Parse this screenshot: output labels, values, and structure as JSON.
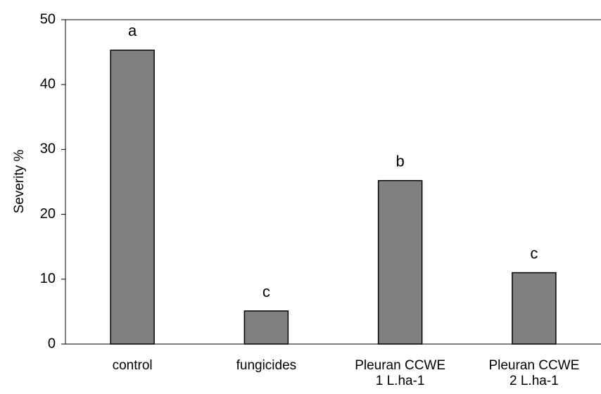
{
  "chart_data": {
    "type": "bar",
    "y_label": "Severity %",
    "categories": [
      "control",
      "fungicides",
      "Pleuran CCWE 1 L.ha-1",
      "Pleuran CCWE 2 L.ha-1"
    ],
    "values": [
      45.3,
      5.1,
      25.2,
      11.0
    ],
    "annotations": [
      "a",
      "c",
      "b",
      "c"
    ],
    "color": "#808080",
    "ylim": [
      0,
      50
    ],
    "yticks": [
      0,
      10,
      20,
      30,
      40,
      50
    ]
  }
}
